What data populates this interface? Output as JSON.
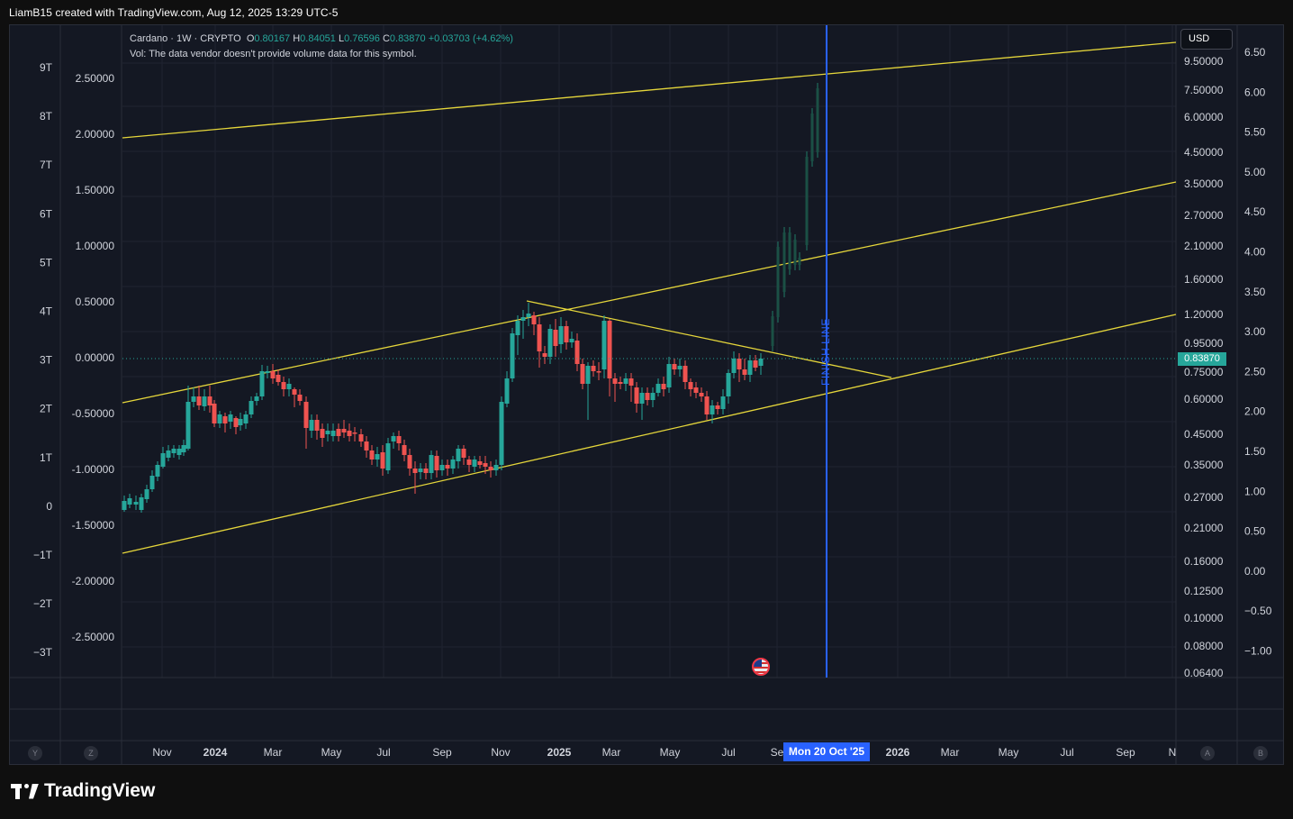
{
  "header": {
    "credit": "LiamB15 created with TradingView.com, Aug 12, 2025 13:29 UTC-5"
  },
  "brand": {
    "name": "TradingView"
  },
  "legend": {
    "symbol": "Cardano · 1W · CRYPTO",
    "o_label": "O",
    "o": "0.80167",
    "h_label": "H",
    "h": "0.84051",
    "l_label": "L",
    "l": "0.76596",
    "c_label": "C",
    "c": "0.83870",
    "change": "+0.03703 (+4.62%)",
    "vol_note": "Vol: The data vendor doesn't provide volume data for this symbol."
  },
  "currency": "USD",
  "last_price": "0.83870",
  "crosshair_date": "Mon 20 Oct '25",
  "annotation": {
    "vertical_label": "FINISH LINE"
  },
  "corner_buttons": {
    "left_a": "Y",
    "left_b": "Z",
    "right_a": "A",
    "right_b": "B"
  },
  "colors": {
    "up": "#26a69a",
    "down": "#ef5350",
    "channel": "#e5d63b",
    "finish_line": "#2962ff",
    "background": "#141823"
  },
  "chart_data": {
    "type": "candlestick",
    "symbol": "Cardano",
    "interval": "1W",
    "x_ticks": [
      "Nov",
      "2024",
      "Mar",
      "May",
      "Jul",
      "Sep",
      "Nov",
      "2025",
      "Mar",
      "May",
      "Jul",
      "Se",
      "Mon 20 Oct '25",
      "2026",
      "Mar",
      "May",
      "Jul",
      "Sep",
      "N"
    ],
    "y_axis_main": [
      "2.50000",
      "2.00000",
      "1.50000",
      "1.00000",
      "0.50000",
      "0.00000",
      "-0.50000",
      "-1.00000",
      "-1.50000",
      "-2.00000",
      "-2.50000"
    ],
    "y_axis_left": [
      "9T",
      "8T",
      "7T",
      "6T",
      "5T",
      "4T",
      "3T",
      "2T",
      "1T",
      "0",
      "−1T",
      "−2T",
      "−3T"
    ],
    "y_axis_log": [
      "9.50000",
      "7.50000",
      "6.00000",
      "4.50000",
      "3.50000",
      "2.70000",
      "2.10000",
      "1.60000",
      "1.20000",
      "0.95000",
      "0.75000",
      "0.60000",
      "0.45000",
      "0.35000",
      "0.27000",
      "0.21000",
      "0.16000",
      "0.12500",
      "0.10000",
      "0.08000",
      "0.06400"
    ],
    "y_axis_right": [
      "6.50",
      "6.00",
      "5.50",
      "5.00",
      "4.50",
      "4.00",
      "3.50",
      "3.00",
      "2.50",
      "2.00",
      "1.50",
      "1.00",
      "0.50",
      "0.00",
      "−0.50",
      "−1.00"
    ],
    "last_close": 0.8387,
    "channel_lines": "3 ascending parallel lines plus 1 descending resistance line",
    "vertical_marker": {
      "label": "FINISH LINE",
      "date": "Mon 20 Oct '25"
    }
  }
}
